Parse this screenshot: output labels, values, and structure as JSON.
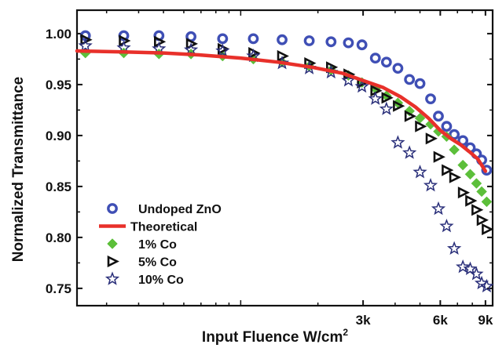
{
  "chart_data": {
    "type": "scatter",
    "xlabel": "Input Fluence W/cm",
    "xlabel_sup": "2",
    "ylabel": "Normalized Transmittance",
    "x_scale": "log",
    "xlim": [
      230,
      9600
    ],
    "ylim": [
      0.733,
      1.023
    ],
    "x_ticks": [
      {
        "value": 3000,
        "label": "3k"
      },
      {
        "value": 6000,
        "label": "6k"
      },
      {
        "value": 9000,
        "label": "9k"
      }
    ],
    "y_ticks": [
      {
        "value": 1.0,
        "label": "1.00"
      },
      {
        "value": 0.95,
        "label": "0.95"
      },
      {
        "value": 0.9,
        "label": "0.90"
      },
      {
        "value": 0.85,
        "label": "0.85"
      },
      {
        "value": 0.8,
        "label": "0.80"
      },
      {
        "value": 0.75,
        "label": "0.75"
      }
    ],
    "grid": false,
    "legend_position": "bottom-left",
    "series": [
      {
        "name": "Undoped ZnO",
        "marker": "circle",
        "color": "#3f4fb5",
        "points": [
          [
            248,
            0.998
          ],
          [
            350,
            0.998
          ],
          [
            480,
            0.998
          ],
          [
            640,
            0.997
          ],
          [
            850,
            0.995
          ],
          [
            1120,
            0.995
          ],
          [
            1450,
            0.994
          ],
          [
            1850,
            0.993
          ],
          [
            2250,
            0.992
          ],
          [
            2630,
            0.991
          ],
          [
            2970,
            0.989
          ],
          [
            3350,
            0.976
          ],
          [
            3700,
            0.972
          ],
          [
            4100,
            0.966
          ],
          [
            4550,
            0.955
          ],
          [
            5000,
            0.951
          ],
          [
            5500,
            0.936
          ],
          [
            5900,
            0.919
          ],
          [
            6350,
            0.909
          ],
          [
            6800,
            0.901
          ],
          [
            7350,
            0.895
          ],
          [
            7850,
            0.888
          ],
          [
            8300,
            0.882
          ],
          [
            8700,
            0.876
          ],
          [
            9100,
            0.866
          ]
        ]
      },
      {
        "name": "1% Co",
        "marker": "diamond",
        "color": "#5cbf3a",
        "points": [
          [
            248,
            0.981
          ],
          [
            350,
            0.981
          ],
          [
            480,
            0.98
          ],
          [
            640,
            0.98
          ],
          [
            850,
            0.978
          ],
          [
            1120,
            0.975
          ],
          [
            1450,
            0.972
          ],
          [
            1850,
            0.968
          ],
          [
            2250,
            0.964
          ],
          [
            2630,
            0.959
          ],
          [
            2970,
            0.952
          ],
          [
            3350,
            0.946
          ],
          [
            3700,
            0.939
          ],
          [
            4100,
            0.932
          ],
          [
            4550,
            0.924
          ],
          [
            5000,
            0.917
          ],
          [
            5500,
            0.911
          ],
          [
            5900,
            0.904
          ],
          [
            6350,
            0.899
          ],
          [
            6800,
            0.886
          ],
          [
            7350,
            0.871
          ],
          [
            7850,
            0.862
          ],
          [
            8300,
            0.853
          ],
          [
            8700,
            0.845
          ],
          [
            9100,
            0.835
          ]
        ]
      },
      {
        "name": "5% Co",
        "marker": "triangle-right",
        "color": "#111111",
        "points": [
          [
            248,
            0.994
          ],
          [
            350,
            0.993
          ],
          [
            480,
            0.992
          ],
          [
            640,
            0.99
          ],
          [
            850,
            0.985
          ],
          [
            1120,
            0.981
          ],
          [
            1450,
            0.978
          ],
          [
            1850,
            0.971
          ],
          [
            2250,
            0.967
          ],
          [
            2630,
            0.96
          ],
          [
            2970,
            0.952
          ],
          [
            3350,
            0.944
          ],
          [
            3700,
            0.937
          ],
          [
            4100,
            0.929
          ],
          [
            4550,
            0.919
          ],
          [
            5000,
            0.909
          ],
          [
            5500,
            0.897
          ],
          [
            5900,
            0.879
          ],
          [
            6350,
            0.866
          ],
          [
            6800,
            0.859
          ],
          [
            7350,
            0.844
          ],
          [
            7850,
            0.836
          ],
          [
            8300,
            0.827
          ],
          [
            8700,
            0.817
          ],
          [
            9100,
            0.808
          ]
        ]
      },
      {
        "name": "10% Co",
        "marker": "star",
        "color": "#2a2f7a",
        "points": [
          [
            248,
            0.988
          ],
          [
            350,
            0.986
          ],
          [
            480,
            0.985
          ],
          [
            640,
            0.984
          ],
          [
            850,
            0.983
          ],
          [
            1120,
            0.978
          ],
          [
            1450,
            0.971
          ],
          [
            1850,
            0.966
          ],
          [
            2250,
            0.962
          ],
          [
            2630,
            0.954
          ],
          [
            2970,
            0.948
          ],
          [
            3350,
            0.936
          ],
          [
            3700,
            0.926
          ],
          [
            4100,
            0.893
          ],
          [
            4550,
            0.883
          ],
          [
            5000,
            0.864
          ],
          [
            5500,
            0.851
          ],
          [
            5900,
            0.828
          ],
          [
            6350,
            0.811
          ],
          [
            6800,
            0.789
          ],
          [
            7350,
            0.771
          ],
          [
            7850,
            0.769
          ],
          [
            8300,
            0.764
          ],
          [
            8700,
            0.755
          ],
          [
            9100,
            0.752
          ]
        ]
      },
      {
        "name": "Theoretical",
        "type": "line",
        "color": "#e8302a",
        "points": [
          [
            230,
            0.983
          ],
          [
            350,
            0.982
          ],
          [
            500,
            0.981
          ],
          [
            700,
            0.979
          ],
          [
            1000,
            0.976
          ],
          [
            1400,
            0.972
          ],
          [
            1900,
            0.967
          ],
          [
            2500,
            0.961
          ],
          [
            3000,
            0.954
          ],
          [
            3600,
            0.947
          ],
          [
            4200,
            0.938
          ],
          [
            4800,
            0.928
          ],
          [
            5400,
            0.917
          ],
          [
            6000,
            0.905
          ],
          [
            6600,
            0.897
          ],
          [
            7200,
            0.891
          ],
          [
            7800,
            0.884
          ],
          [
            8400,
            0.877
          ],
          [
            9000,
            0.865
          ]
        ]
      }
    ],
    "legend": [
      {
        "label": "Undoped ZnO",
        "marker": "circle",
        "color": "#3f4fb5"
      },
      {
        "label": "Theoretical",
        "marker": "line",
        "color": "#e8302a"
      },
      {
        "label": "1% Co",
        "marker": "diamond",
        "color": "#5cbf3a"
      },
      {
        "label": "5% Co",
        "marker": "triangle-right",
        "color": "#111111"
      },
      {
        "label": "10% Co",
        "marker": "star",
        "color": "#2a2f7a"
      }
    ]
  }
}
